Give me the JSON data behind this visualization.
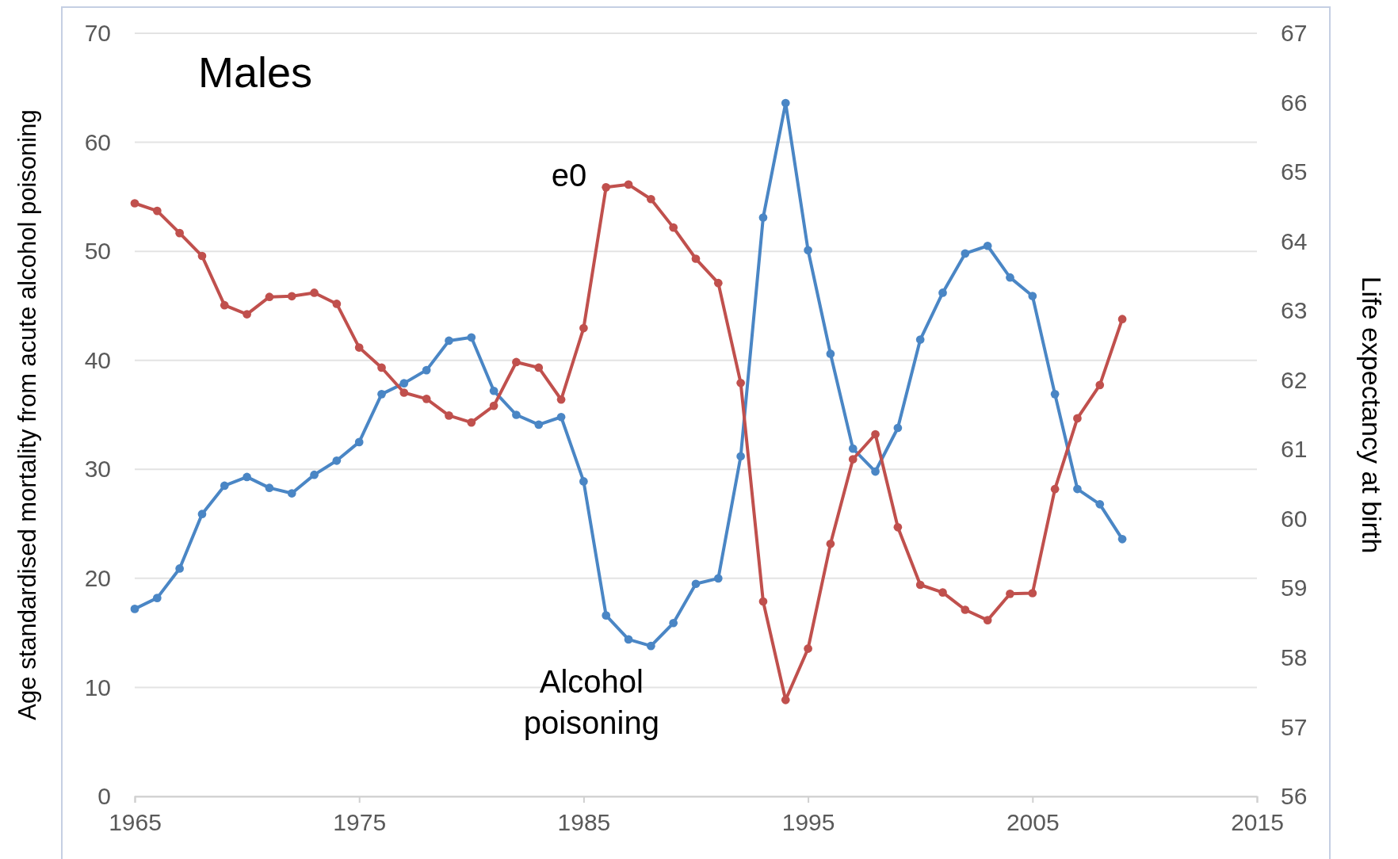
{
  "chart_data": {
    "type": "line",
    "title": "Males",
    "ylabel": "Age standardised mortality from acute alcohol poisoning",
    "y2label": "Life expectancy at birth",
    "x": [
      1965,
      1966,
      1967,
      1968,
      1969,
      1970,
      1971,
      1972,
      1973,
      1974,
      1975,
      1976,
      1977,
      1978,
      1979,
      1980,
      1981,
      1982,
      1983,
      1984,
      1985,
      1986,
      1987,
      1988,
      1989,
      1990,
      1991,
      1992,
      1993,
      1994,
      1995,
      1996,
      1997,
      1998,
      1999,
      2000,
      2001,
      2002,
      2003,
      2004,
      2005,
      2006,
      2007,
      2008,
      2009
    ],
    "series": [
      {
        "name": "Alcohol poisoning",
        "color": "#4a86c5",
        "values": [
          17.2,
          18.2,
          20.9,
          25.9,
          28.5,
          29.3,
          28.3,
          27.8,
          29.5,
          30.8,
          32.5,
          36.9,
          37.9,
          39.1,
          41.8,
          42.1,
          37.2,
          35.0,
          34.1,
          34.8,
          28.9,
          16.6,
          14.4,
          13.8,
          15.9,
          19.5,
          20.0,
          31.2,
          53.1,
          63.6,
          50.1,
          40.6,
          31.9,
          29.8,
          33.8,
          41.9,
          46.2,
          49.8,
          50.5,
          47.6,
          45.9,
          36.9,
          28.2,
          26.8,
          23.6
        ]
      },
      {
        "name": "e0",
        "color": "#c0504d",
        "axis": "y2",
        "values": [
          64.55,
          64.44,
          64.12,
          63.79,
          63.08,
          62.95,
          63.2,
          63.21,
          63.26,
          63.1,
          62.47,
          62.18,
          61.82,
          61.73,
          61.49,
          61.39,
          61.63,
          62.26,
          62.18,
          61.72,
          62.75,
          64.78,
          64.82,
          64.61,
          64.2,
          63.75,
          63.4,
          61.96,
          58.81,
          57.39,
          58.13,
          59.64,
          60.86,
          61.22,
          59.88,
          59.05,
          58.94,
          58.69,
          58.54,
          58.92,
          58.93,
          60.43,
          61.45,
          61.93,
          62.88
        ]
      }
    ],
    "xlim": [
      1965,
      2015
    ],
    "xticks": [
      1965,
      1975,
      1985,
      1995,
      2005,
      2015
    ],
    "ylim": [
      0,
      70
    ],
    "yticks": [
      0,
      10,
      20,
      30,
      40,
      50,
      60,
      70
    ],
    "y2lim": [
      56,
      67
    ],
    "y2ticks": [
      56,
      57,
      58,
      59,
      60,
      61,
      62,
      63,
      64,
      65,
      66,
      67
    ],
    "grid": "y",
    "marker": "circle",
    "line_style": "solid"
  }
}
